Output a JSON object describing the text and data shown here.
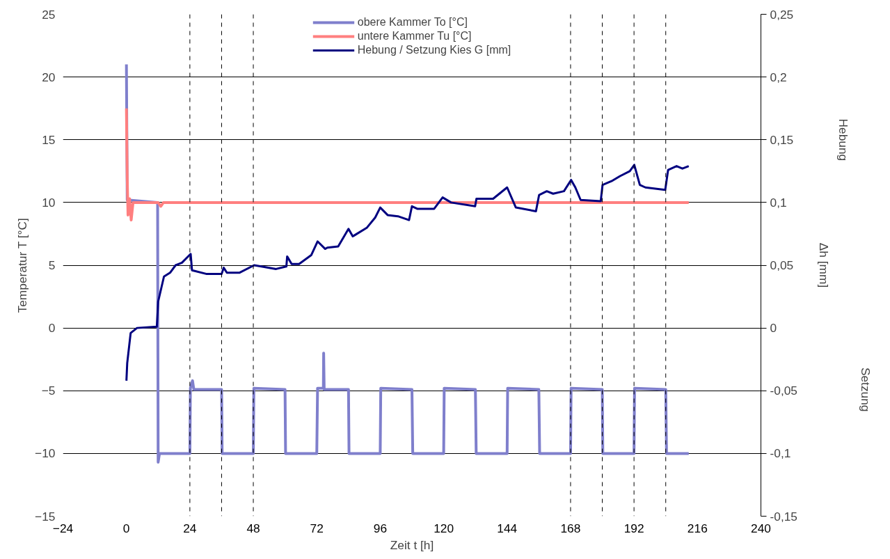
{
  "chart_data": {
    "type": "line",
    "xlabel": "Zeit t [h]",
    "ylabel": "Temperatur T [°C]",
    "y2label": "Δh [mm]",
    "annotations": [
      "Hebung",
      "Setzung"
    ],
    "xlim": [
      -24,
      240
    ],
    "xticks": [
      -24,
      0,
      24,
      48,
      72,
      96,
      120,
      144,
      168,
      192,
      216,
      240
    ],
    "ylim": [
      -15,
      25
    ],
    "yticks": [
      -15,
      -10,
      -5,
      0,
      5,
      10,
      15,
      20,
      25
    ],
    "y2lim": [
      -0.15,
      0.25
    ],
    "y2ticks": [
      {
        "value": -0.15,
        "label": "-0,15"
      },
      {
        "value": -0.1,
        "label": "-0,1"
      },
      {
        "value": -0.05,
        "label": "-0,05"
      },
      {
        "value": 0,
        "label": "0"
      },
      {
        "value": 0.05,
        "label": "0,05"
      },
      {
        "value": 0.1,
        "label": "0,1"
      },
      {
        "value": 0.15,
        "label": "0,15"
      },
      {
        "value": 0.2,
        "label": "0,2"
      },
      {
        "value": 0.25,
        "label": "0,25"
      }
    ],
    "grid": "y",
    "legend": "top",
    "marker": "none",
    "line_style": "solid",
    "ref_lines": [
      {
        "axis": "x",
        "value": 24,
        "color": "#000000",
        "line_style": "dashed"
      },
      {
        "axis": "x",
        "value": 36,
        "color": "#000000",
        "line_style": "dashed"
      },
      {
        "axis": "x",
        "value": 48,
        "color": "#000000",
        "line_style": "dashed"
      },
      {
        "axis": "x",
        "value": 168,
        "color": "#000000",
        "line_style": "dashed"
      },
      {
        "axis": "x",
        "value": 180,
        "color": "#000000",
        "line_style": "dashed"
      },
      {
        "axis": "x",
        "value": 192,
        "color": "#000000",
        "line_style": "dashed"
      },
      {
        "axis": "x",
        "value": 204,
        "color": "#000000",
        "line_style": "dashed"
      }
    ],
    "series": [
      {
        "name": "obere Kammer To [°C]",
        "color": "#7f7fcc",
        "x": [
          0,
          0.3,
          11.8,
          12,
          12.5,
          24,
          24.2,
          25,
          25.5,
          36,
          36.2,
          48,
          48.2,
          60,
          60.2,
          72,
          72.3,
          74.5,
          74.6,
          74.8,
          84,
          84.2,
          96,
          96.2,
          108,
          108.3,
          120,
          120.2,
          132,
          132.3,
          144,
          144.2,
          156,
          156.3,
          168,
          168.2,
          180,
          180.2,
          192,
          192.2,
          204,
          204.3,
          212.7
        ],
        "values": [
          21,
          10.2,
          10,
          -10.7,
          -10,
          -10,
          -4.8,
          -4.2,
          -4.9,
          -4.9,
          -10,
          -10,
          -4.8,
          -4.9,
          -10,
          -10,
          -4.8,
          -4.8,
          -2,
          -4.9,
          -4.9,
          -10,
          -10,
          -4.8,
          -4.9,
          -10,
          -10,
          -4.8,
          -4.9,
          -10,
          -10,
          -4.8,
          -4.9,
          -10,
          -10,
          -4.8,
          -4.9,
          -10,
          -10,
          -4.8,
          -4.9,
          -10,
          -10
        ]
      },
      {
        "name": "untere Kammer Tu [°C]",
        "color": "#ff7f7f",
        "x": [
          0,
          0.3,
          0.6,
          1.2,
          1.8,
          2.5,
          8,
          12,
          13,
          14,
          212.7
        ],
        "values": [
          17.5,
          12,
          9,
          10.3,
          8.6,
          10,
          10,
          10,
          9.7,
          10,
          10
        ]
      },
      {
        "name": "Hebung / Setzung Kies G [mm]",
        "color": "#000080",
        "axis": "y2",
        "x": [
          0,
          0.3,
          1.6,
          4,
          11.5,
          12,
          14.2,
          16.5,
          18.6,
          21,
          24.3,
          24.8,
          30.4,
          36,
          36.8,
          38,
          42.7,
          48.3,
          51,
          56.6,
          60.5,
          60.8,
          62.5,
          65.3,
          69.9,
          72.3,
          75.2,
          76,
          80.1,
          84,
          85.6,
          91,
          94.1,
          96,
          98.8,
          102.7,
          106.9,
          108,
          110,
          116.4,
          119.6,
          122.8,
          131.9,
          132.4,
          138.7,
          144,
          147.3,
          154.9,
          156.1,
          159,
          161.4,
          165.5,
          168.2,
          169.8,
          171.8,
          179.4,
          180.1,
          183.5,
          186.7,
          190.4,
          192.1,
          194.2,
          196.3,
          203.8,
          204.9,
          208.1,
          210.3,
          212.7
        ],
        "values": [
          -0.042,
          -0.028,
          -0.004,
          0,
          0.001,
          0.021,
          0.041,
          0.044,
          0.05,
          0.052,
          0.059,
          0.046,
          0.043,
          0.043,
          0.048,
          0.044,
          0.044,
          0.05,
          0.049,
          0.047,
          0.049,
          0.057,
          0.051,
          0.051,
          0.058,
          0.069,
          0.063,
          0.064,
          0.065,
          0.079,
          0.073,
          0.08,
          0.088,
          0.096,
          0.09,
          0.089,
          0.086,
          0.097,
          0.095,
          0.095,
          0.104,
          0.1,
          0.097,
          0.103,
          0.103,
          0.112,
          0.096,
          0.093,
          0.106,
          0.109,
          0.107,
          0.109,
          0.118,
          0.112,
          0.102,
          0.101,
          0.114,
          0.117,
          0.121,
          0.125,
          0.13,
          0.114,
          0.112,
          0.11,
          0.126,
          0.129,
          0.127,
          0.129
        ]
      }
    ]
  }
}
